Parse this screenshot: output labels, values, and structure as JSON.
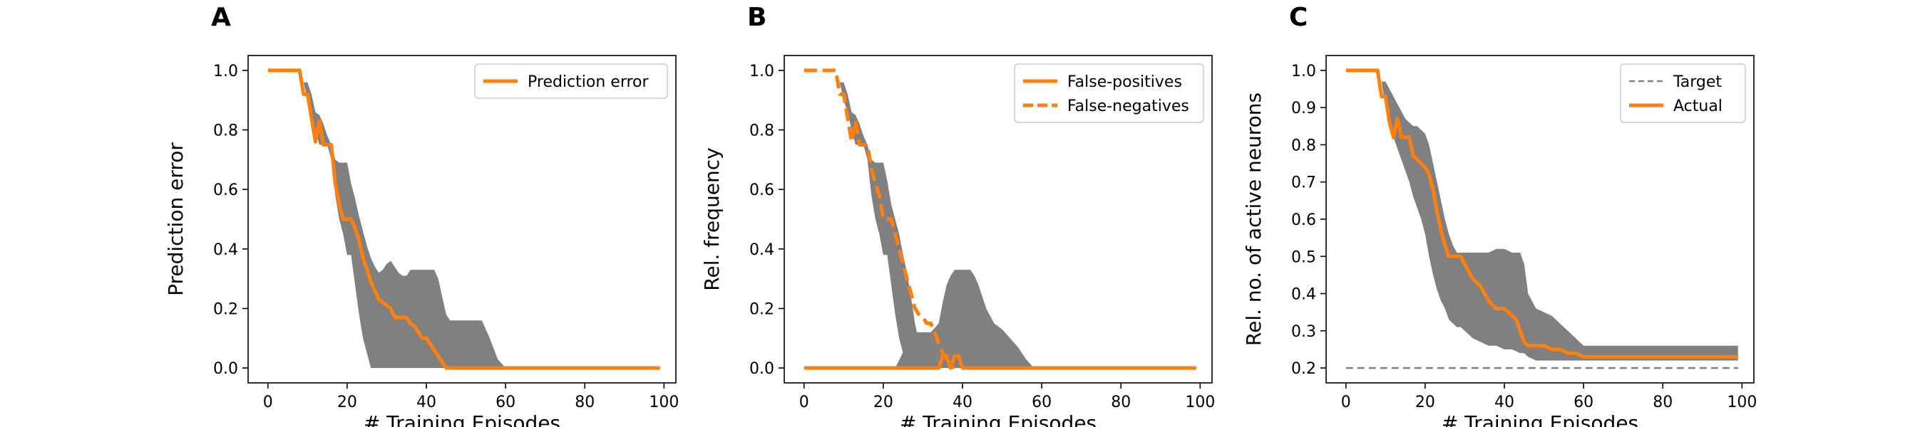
{
  "colors": {
    "accent": "#ff7f0e",
    "band": "#808080",
    "target": "#808080"
  },
  "chart_data": [
    {
      "type": "line",
      "panel_label": "A",
      "xlabel": "# Training Episodes",
      "ylabel": "Prediction error",
      "xlim": [
        -5,
        103
      ],
      "ylim": [
        -0.05,
        1.05
      ],
      "xticks": [
        0,
        20,
        40,
        60,
        80,
        100
      ],
      "yticks": [
        0.0,
        0.2,
        0.4,
        0.6,
        0.8,
        1.0
      ],
      "ytick_labels": [
        "0.0",
        "0.2",
        "0.4",
        "0.6",
        "0.8",
        "1.0"
      ],
      "legend_position": "top-right",
      "bands": [
        {
          "x": [
            9,
            10,
            11,
            12,
            13,
            14,
            15,
            16,
            17,
            18,
            19,
            20,
            21,
            22,
            23,
            24,
            25,
            26,
            27,
            28,
            29,
            30,
            31,
            32,
            33,
            34,
            35,
            36,
            37,
            38,
            39,
            40,
            41,
            42,
            43,
            44,
            45,
            46,
            47,
            48,
            50,
            52,
            54,
            56,
            58,
            60
          ],
          "upper": [
            0.96,
            0.96,
            0.92,
            0.86,
            0.85,
            0.82,
            0.78,
            0.75,
            0.7,
            0.69,
            0.69,
            0.69,
            0.62,
            0.57,
            0.51,
            0.46,
            0.41,
            0.37,
            0.34,
            0.32,
            0.33,
            0.35,
            0.36,
            0.34,
            0.32,
            0.31,
            0.31,
            0.33,
            0.33,
            0.33,
            0.33,
            0.33,
            0.33,
            0.33,
            0.3,
            0.24,
            0.18,
            0.16,
            0.16,
            0.16,
            0.16,
            0.16,
            0.16,
            0.1,
            0.03,
            0.0
          ],
          "lower": [
            0.96,
            0.9,
            0.86,
            0.8,
            0.75,
            0.75,
            0.75,
            0.7,
            0.58,
            0.5,
            0.45,
            0.38,
            0.38,
            0.28,
            0.18,
            0.1,
            0.05,
            0.0,
            0.0,
            0.0,
            0.0,
            0.0,
            0.0,
            0.0,
            0.0,
            0.0,
            0.0,
            0.0,
            0.0,
            0.0,
            0.0,
            0.0,
            0.0,
            0.0,
            0.0,
            0.0,
            0.0,
            0.0,
            0.0,
            0.0,
            0.0,
            0.0,
            0.0,
            0.0,
            0.0,
            0.0
          ]
        }
      ],
      "series": [
        {
          "name": "Prediction error",
          "style": "solid",
          "x": [
            0,
            8,
            9,
            10,
            11,
            12,
            13,
            14,
            15,
            16,
            17,
            18,
            19,
            20,
            21,
            22,
            23,
            24,
            25,
            26,
            27,
            28,
            29,
            30,
            31,
            32,
            33,
            34,
            35,
            36,
            37,
            38,
            39,
            40,
            41,
            42,
            43,
            44,
            45,
            46,
            47,
            48,
            60,
            80,
            99
          ],
          "y": [
            1.0,
            1.0,
            0.92,
            0.92,
            0.84,
            0.76,
            0.83,
            0.75,
            0.75,
            0.75,
            0.62,
            0.55,
            0.5,
            0.5,
            0.5,
            0.47,
            0.43,
            0.37,
            0.33,
            0.29,
            0.26,
            0.23,
            0.22,
            0.21,
            0.2,
            0.17,
            0.17,
            0.17,
            0.17,
            0.15,
            0.14,
            0.12,
            0.1,
            0.1,
            0.08,
            0.06,
            0.04,
            0.02,
            0.0,
            0.0,
            0.0,
            0.0,
            0.0,
            0.0,
            0.0
          ]
        }
      ]
    },
    {
      "type": "line",
      "panel_label": "B",
      "xlabel": "# Training Episodes",
      "ylabel": "Rel. frequency",
      "xlim": [
        -5,
        103
      ],
      "ylim": [
        -0.05,
        1.05
      ],
      "xticks": [
        0,
        20,
        40,
        60,
        80,
        100
      ],
      "yticks": [
        0.0,
        0.2,
        0.4,
        0.6,
        0.8,
        1.0
      ],
      "ytick_labels": [
        "0.0",
        "0.2",
        "0.4",
        "0.6",
        "0.8",
        "1.0"
      ],
      "legend_position": "top-right",
      "bands": [
        {
          "x": [
            9,
            10,
            11,
            12,
            13,
            14,
            15,
            16,
            17,
            18,
            19,
            20,
            21,
            22,
            23,
            24,
            25,
            26,
            27,
            28,
            29,
            30,
            31,
            32
          ],
          "upper": [
            0.96,
            0.96,
            0.92,
            0.86,
            0.85,
            0.82,
            0.78,
            0.75,
            0.7,
            0.69,
            0.69,
            0.69,
            0.63,
            0.55,
            0.5,
            0.45,
            0.38,
            0.32,
            0.24,
            0.15,
            0.09,
            0.05,
            0.02,
            0.0
          ],
          "lower": [
            0.96,
            0.9,
            0.86,
            0.8,
            0.75,
            0.75,
            0.75,
            0.7,
            0.58,
            0.5,
            0.45,
            0.38,
            0.38,
            0.28,
            0.18,
            0.1,
            0.05,
            0.0,
            0.0,
            0.0,
            0.0,
            0.0,
            0.0,
            0.0
          ]
        },
        {
          "x": [
            23,
            26,
            28,
            30,
            32,
            34,
            35,
            36,
            37,
            38,
            39,
            40,
            41,
            42,
            43,
            44,
            46,
            48,
            50,
            52,
            54,
            56,
            58
          ],
          "upper": [
            0.0,
            0.08,
            0.12,
            0.12,
            0.12,
            0.15,
            0.22,
            0.28,
            0.31,
            0.33,
            0.33,
            0.33,
            0.33,
            0.33,
            0.31,
            0.28,
            0.2,
            0.15,
            0.13,
            0.1,
            0.07,
            0.03,
            0.0
          ],
          "lower": [
            0.0,
            0.0,
            0.0,
            0.0,
            0.0,
            0.0,
            0.0,
            0.0,
            0.0,
            0.0,
            0.0,
            0.0,
            0.0,
            0.0,
            0.0,
            0.0,
            0.0,
            0.0,
            0.0,
            0.0,
            0.0,
            0.0,
            0.0
          ]
        }
      ],
      "series": [
        {
          "name": "False-positives",
          "style": "solid",
          "x": [
            0,
            30,
            31,
            32,
            33,
            34,
            35,
            36,
            37,
            38,
            39,
            40,
            41,
            42,
            43,
            44,
            99
          ],
          "y": [
            0.0,
            0.0,
            0.0,
            0.0,
            0.0,
            0.0,
            0.04,
            0.04,
            0.0,
            0.04,
            0.04,
            0.0,
            0.0,
            0.0,
            0.0,
            0.0,
            0.0
          ],
          "start_x": 0
        },
        {
          "name": "False-negatives",
          "style": "dashed",
          "x": [
            0,
            8,
            9,
            10,
            11,
            12,
            13,
            14,
            15,
            16,
            17,
            18,
            19,
            20,
            21,
            22,
            23,
            24,
            25,
            26,
            27,
            28,
            29,
            30,
            31,
            32,
            33,
            34,
            35,
            36,
            37,
            38
          ],
          "y": [
            1.0,
            1.0,
            0.92,
            0.92,
            0.84,
            0.76,
            0.83,
            0.75,
            0.75,
            0.75,
            0.67,
            0.62,
            0.58,
            0.5,
            0.5,
            0.5,
            0.45,
            0.4,
            0.35,
            0.3,
            0.25,
            0.2,
            0.18,
            0.17,
            0.15,
            0.15,
            0.12,
            0.08,
            0.05,
            0.03,
            0.01,
            0.0
          ]
        }
      ]
    },
    {
      "type": "line",
      "panel_label": "C",
      "xlabel": "# Training Episodes",
      "ylabel": "Rel. no. of active neurons",
      "xlim": [
        -5,
        103
      ],
      "ylim": [
        0.16,
        1.04
      ],
      "xticks": [
        0,
        20,
        40,
        60,
        80,
        100
      ],
      "yticks": [
        0.2,
        0.3,
        0.4,
        0.5,
        0.6,
        0.7,
        0.8,
        0.9,
        1.0
      ],
      "ytick_labels": [
        "0.2",
        "0.3",
        "0.4",
        "0.5",
        "0.6",
        "0.7",
        "0.8",
        "0.9",
        "1.0"
      ],
      "legend_position": "top-right",
      "bands": [
        {
          "x": [
            9,
            10,
            11,
            12,
            13,
            14,
            15,
            16,
            17,
            18,
            19,
            20,
            21,
            22,
            23,
            24,
            25,
            26,
            27,
            28,
            29,
            30,
            31,
            32,
            34,
            36,
            38,
            40,
            42,
            44,
            45,
            46,
            48,
            50,
            52,
            54,
            56,
            58,
            60,
            70,
            80,
            90,
            99
          ],
          "upper": [
            0.97,
            0.97,
            0.95,
            0.93,
            0.91,
            0.89,
            0.87,
            0.86,
            0.85,
            0.85,
            0.84,
            0.83,
            0.8,
            0.75,
            0.7,
            0.65,
            0.6,
            0.56,
            0.53,
            0.51,
            0.51,
            0.51,
            0.51,
            0.51,
            0.51,
            0.51,
            0.52,
            0.52,
            0.51,
            0.51,
            0.48,
            0.4,
            0.36,
            0.35,
            0.34,
            0.32,
            0.3,
            0.28,
            0.26,
            0.26,
            0.26,
            0.26,
            0.26
          ],
          "lower": [
            0.97,
            0.9,
            0.86,
            0.82,
            0.79,
            0.76,
            0.73,
            0.7,
            0.66,
            0.63,
            0.6,
            0.56,
            0.5,
            0.45,
            0.41,
            0.38,
            0.36,
            0.33,
            0.32,
            0.31,
            0.31,
            0.3,
            0.29,
            0.28,
            0.27,
            0.26,
            0.26,
            0.25,
            0.25,
            0.24,
            0.24,
            0.23,
            0.22,
            0.22,
            0.22,
            0.22,
            0.22,
            0.22,
            0.22,
            0.22,
            0.22,
            0.22,
            0.22
          ]
        }
      ],
      "series": [
        {
          "name": "Target",
          "style": "target-dashed",
          "x": [
            0,
            99
          ],
          "y": [
            0.2,
            0.2
          ]
        },
        {
          "name": "Actual",
          "style": "solid",
          "x": [
            0,
            8,
            9,
            10,
            11,
            12,
            13,
            14,
            15,
            16,
            17,
            18,
            19,
            20,
            21,
            22,
            23,
            24,
            25,
            26,
            27,
            28,
            29,
            30,
            31,
            32,
            33,
            34,
            35,
            36,
            37,
            38,
            39,
            40,
            41,
            42,
            43,
            44,
            45,
            46,
            47,
            48,
            50,
            52,
            54,
            56,
            58,
            60,
            70,
            80,
            90,
            99
          ],
          "y": [
            1.0,
            1.0,
            0.93,
            0.93,
            0.86,
            0.82,
            0.87,
            0.82,
            0.82,
            0.82,
            0.77,
            0.76,
            0.75,
            0.74,
            0.72,
            0.68,
            0.62,
            0.57,
            0.53,
            0.5,
            0.5,
            0.5,
            0.5,
            0.48,
            0.46,
            0.44,
            0.43,
            0.42,
            0.4,
            0.38,
            0.37,
            0.36,
            0.36,
            0.36,
            0.35,
            0.34,
            0.33,
            0.3,
            0.27,
            0.26,
            0.26,
            0.26,
            0.26,
            0.25,
            0.25,
            0.24,
            0.24,
            0.23,
            0.23,
            0.23,
            0.23,
            0.23
          ]
        }
      ]
    }
  ]
}
